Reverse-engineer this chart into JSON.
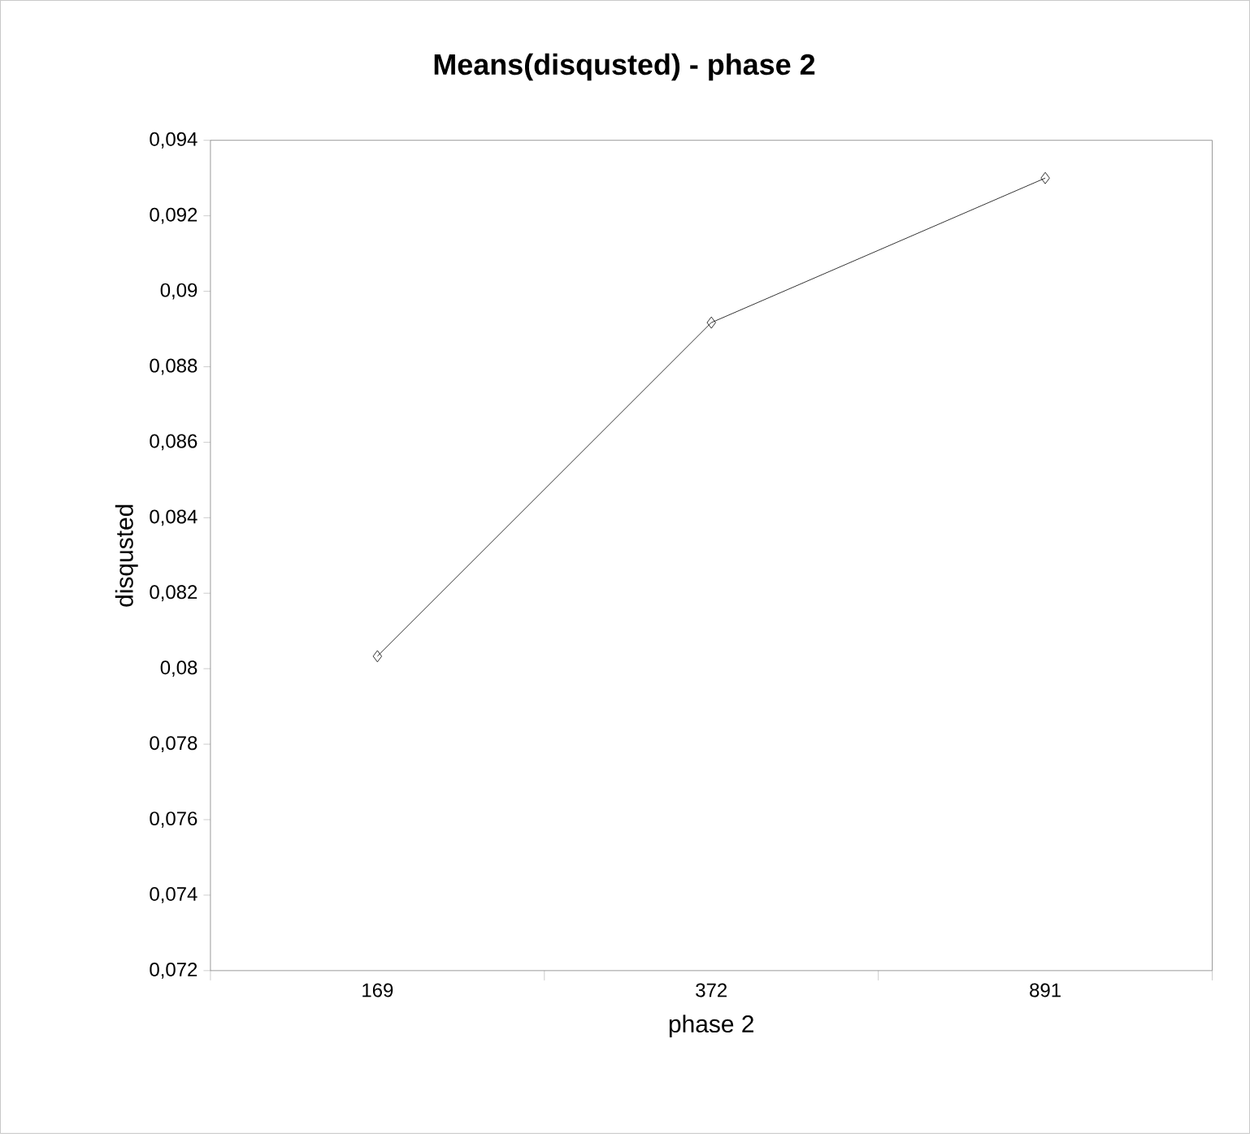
{
  "chart_data": {
    "type": "line",
    "title": "Means(disqusted) - phase 2",
    "xlabel": "phase 2",
    "ylabel": "disqusted",
    "categories": [
      "169",
      "372",
      "891"
    ],
    "series": [
      {
        "color": "#000000",
        "values": [
          0.08033,
          0.08917,
          0.093
        ]
      }
    ],
    "ylim": [
      0.072,
      0.094
    ],
    "yticks": [
      {
        "value": 0.072,
        "label": "0,072"
      },
      {
        "value": 0.074,
        "label": "0,074"
      },
      {
        "value": 0.076,
        "label": "0,076"
      },
      {
        "value": 0.078,
        "label": "0,078"
      },
      {
        "value": 0.08,
        "label": "0,08"
      },
      {
        "value": 0.082,
        "label": "0,082"
      },
      {
        "value": 0.084,
        "label": "0,084"
      },
      {
        "value": 0.086,
        "label": "0,086"
      },
      {
        "value": 0.088,
        "label": "0,088"
      },
      {
        "value": 0.09,
        "label": "0,09"
      },
      {
        "value": 0.092,
        "label": "0,092"
      },
      {
        "value": 0.094,
        "label": "0,094"
      }
    ],
    "marker": "diamond",
    "line_style": "solid"
  }
}
